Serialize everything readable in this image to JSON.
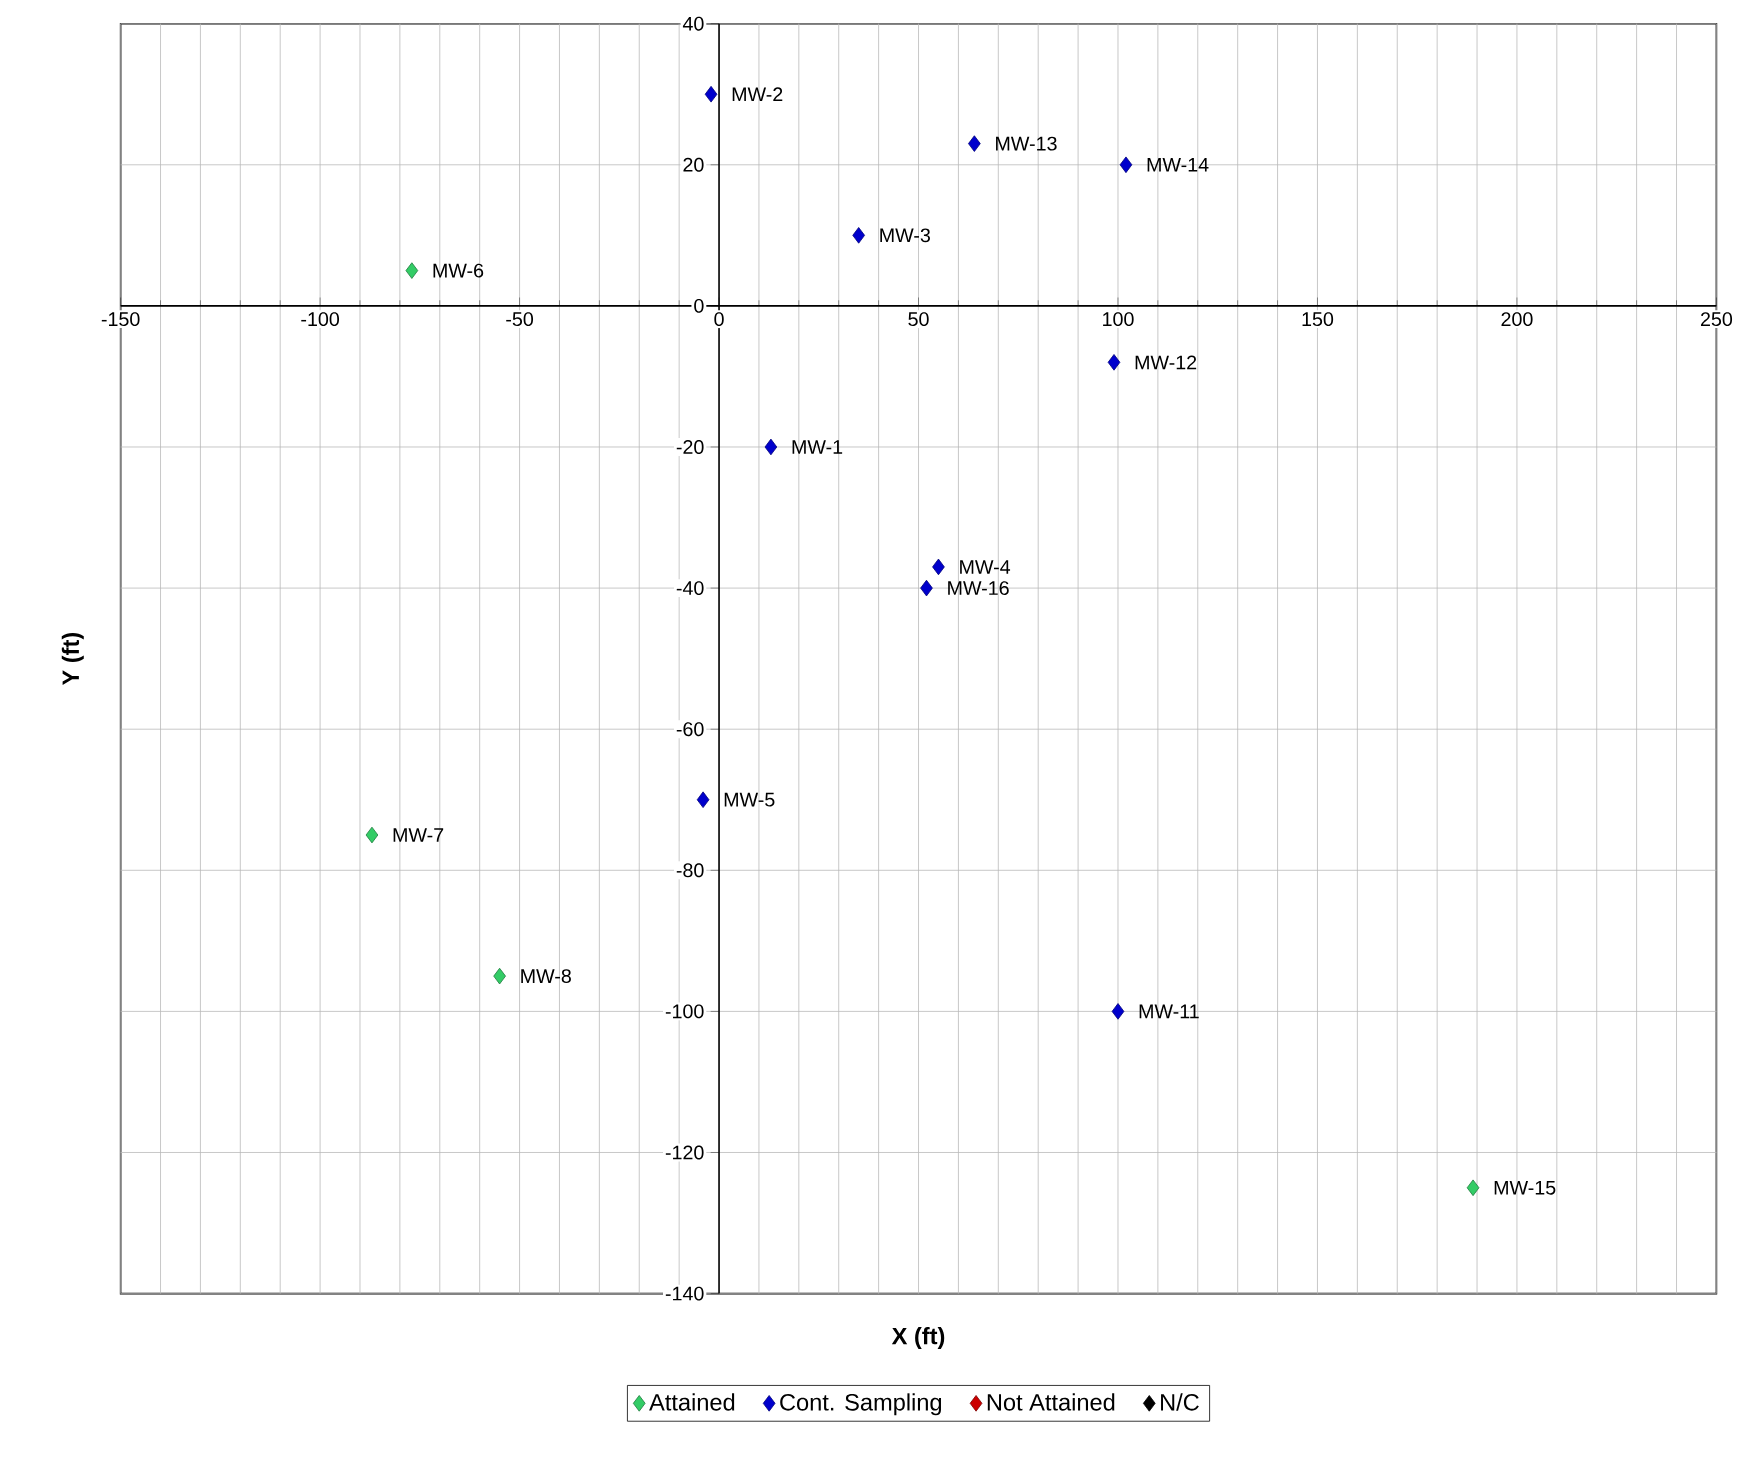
{
  "chart_data": {
    "type": "scatter",
    "xlabel": "X (ft)",
    "ylabel": "Y (ft)",
    "xlim": [
      -150,
      250
    ],
    "ylim": [
      -140,
      40
    ],
    "xticks": [
      -150,
      -100,
      -50,
      0,
      50,
      100,
      150,
      200,
      250
    ],
    "yticks": [
      -140,
      -120,
      -100,
      -80,
      -60,
      -40,
      -20,
      0,
      20,
      40
    ],
    "grid": true,
    "legend": "bottom",
    "marker": "diamond",
    "series": [
      {
        "name": "Attained",
        "color": "#33cc66",
        "x": [
          -77,
          -87,
          -55,
          189
        ],
        "values": [
          5,
          -75,
          -95,
          -125
        ]
      },
      {
        "name": "Cont. Sampling",
        "color": "#0000cc",
        "x": [
          13,
          -2,
          35,
          55,
          -4,
          100,
          99,
          64,
          102,
          52
        ],
        "values": [
          -20,
          30,
          10,
          -37,
          -70,
          -100,
          -8,
          23,
          20,
          -40
        ]
      },
      {
        "name": "Not Attained",
        "color": "#cc0000"
      },
      {
        "name": "N/C",
        "color": "#000000"
      }
    ],
    "annotations": [
      {
        "text": "MW-6",
        "x": -77,
        "y": 5
      },
      {
        "text": "MW-7",
        "x": -87,
        "y": -75
      },
      {
        "text": "MW-8",
        "x": -55,
        "y": -95
      },
      {
        "text": "MW-15",
        "x": 189,
        "y": -125
      },
      {
        "text": "MW-1",
        "x": 13,
        "y": -20
      },
      {
        "text": "MW-2",
        "x": -2,
        "y": 30
      },
      {
        "text": "MW-3",
        "x": 35,
        "y": 10
      },
      {
        "text": "MW-4",
        "x": 55,
        "y": -37
      },
      {
        "text": "MW-5",
        "x": -4,
        "y": -70
      },
      {
        "text": "MW-11",
        "x": 100,
        "y": -100
      },
      {
        "text": "MW-12",
        "x": 99,
        "y": -8
      },
      {
        "text": "MW-13",
        "x": 64,
        "y": 23
      },
      {
        "text": "MW-14",
        "x": 102,
        "y": 20
      },
      {
        "text": "MW-16",
        "x": 52,
        "y": -40
      }
    ]
  }
}
